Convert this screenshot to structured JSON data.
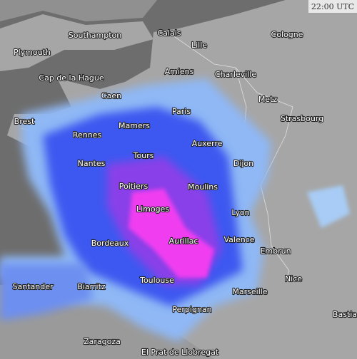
{
  "timestamp": "22:00 UTC",
  "cities": [
    "Southampton",
    "Plymouth",
    "Calais",
    "Lille",
    "Cologne",
    "Amiens",
    "Charleville",
    "Cap de la Hague",
    "Caen",
    "Metz",
    "Paris",
    "Strasbourg",
    "Brest",
    "Mamers",
    "Rennes",
    "Auxerre",
    "Tours",
    "Nantes",
    "Dijon",
    "Poitiers",
    "Moulins",
    "Limoges",
    "Lyon",
    "Valence",
    "Aurillac",
    "Bordeaux",
    "Embrun",
    "Nice",
    "Toulouse",
    "Santander",
    "Biarritz",
    "Marseille",
    "Bastia",
    "Perpignan",
    "Zaragoza",
    "El Prat de Llobregat"
  ]
}
